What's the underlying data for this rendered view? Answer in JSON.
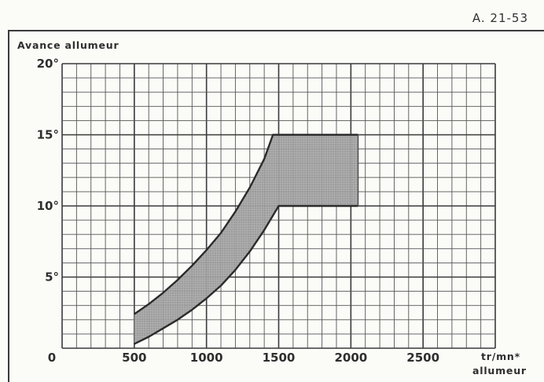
{
  "reference": "A. 21-53",
  "chart_data": {
    "type": "area",
    "ylabel": "Avance allumeur",
    "xlabel_line1": "tr/mn*",
    "xlabel_line2": "allumeur",
    "xlim": [
      0,
      3000
    ],
    "ylim": [
      0,
      20
    ],
    "x_ticks": [
      {
        "value": 0,
        "label": "0"
      },
      {
        "value": 500,
        "label": "500"
      },
      {
        "value": 1000,
        "label": "1000"
      },
      {
        "value": 1500,
        "label": "1500"
      },
      {
        "value": 2000,
        "label": "2000"
      },
      {
        "value": 2500,
        "label": "2500"
      }
    ],
    "y_ticks": [
      {
        "value": 5,
        "label": "5°"
      },
      {
        "value": 10,
        "label": "10°"
      },
      {
        "value": 15,
        "label": "15°"
      },
      {
        "value": 20,
        "label": "20°"
      }
    ],
    "grid": true,
    "band": {
      "upper": [
        [
          500,
          2.4
        ],
        [
          600,
          3.1
        ],
        [
          700,
          3.9
        ],
        [
          800,
          4.8
        ],
        [
          900,
          5.8
        ],
        [
          1000,
          6.9
        ],
        [
          1100,
          8.1
        ],
        [
          1200,
          9.6
        ],
        [
          1300,
          11.3
        ],
        [
          1400,
          13.3
        ],
        [
          1460,
          15.0
        ],
        [
          2050,
          15.0
        ]
      ],
      "lower": [
        [
          500,
          0.3
        ],
        [
          600,
          0.8
        ],
        [
          700,
          1.4
        ],
        [
          800,
          2.0
        ],
        [
          900,
          2.7
        ],
        [
          1000,
          3.5
        ],
        [
          1100,
          4.4
        ],
        [
          1200,
          5.5
        ],
        [
          1300,
          6.8
        ],
        [
          1400,
          8.3
        ],
        [
          1500,
          10.0
        ],
        [
          2050,
          10.0
        ]
      ]
    }
  }
}
